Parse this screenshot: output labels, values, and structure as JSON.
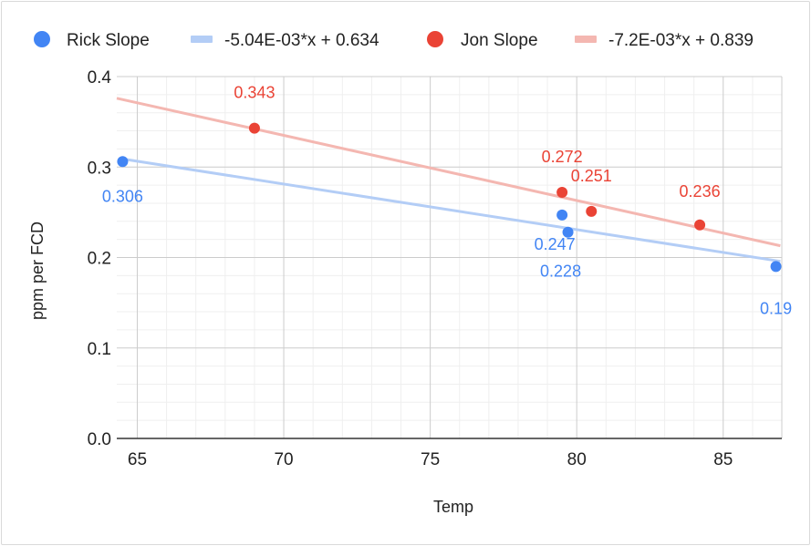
{
  "chart_data": {
    "type": "scatter",
    "xlabel": "Temp",
    "ylabel": "ppm per FCD",
    "xlim": [
      64.3,
      87.0
    ],
    "ylim": [
      0.0,
      0.4
    ],
    "x_ticks": [
      65,
      70,
      75,
      80,
      85
    ],
    "y_ticks": [
      "0.0",
      "0.1",
      "0.2",
      "0.3",
      "0.4"
    ],
    "grid": true,
    "minor_grid": true,
    "legend_position": "top",
    "series": [
      {
        "name": "Rick Slope",
        "color": "#4285f4",
        "points": [
          {
            "x": 64.5,
            "y": 0.306,
            "label": "0.306"
          },
          {
            "x": 79.5,
            "y": 0.247,
            "label": "0.247"
          },
          {
            "x": 79.7,
            "y": 0.228,
            "label": "0.228"
          },
          {
            "x": 86.8,
            "y": 0.19,
            "label": "0.19"
          }
        ],
        "trendline": {
          "label": "-5.04E-03*x + 0.634",
          "slope": -0.00504,
          "intercept": 0.634,
          "color": "#b3cdf6"
        }
      },
      {
        "name": "Jon Slope",
        "color": "#ea4335",
        "points": [
          {
            "x": 69.0,
            "y": 0.343,
            "label": "0.343"
          },
          {
            "x": 79.5,
            "y": 0.272,
            "label": "0.272"
          },
          {
            "x": 80.5,
            "y": 0.251,
            "label": "0.251"
          },
          {
            "x": 84.2,
            "y": 0.236,
            "label": "0.236"
          }
        ],
        "trendline": {
          "label": "-7.2E-03*x + 0.839",
          "slope": -0.0072,
          "intercept": 0.839,
          "color": "#f4b7b1"
        }
      }
    ]
  }
}
